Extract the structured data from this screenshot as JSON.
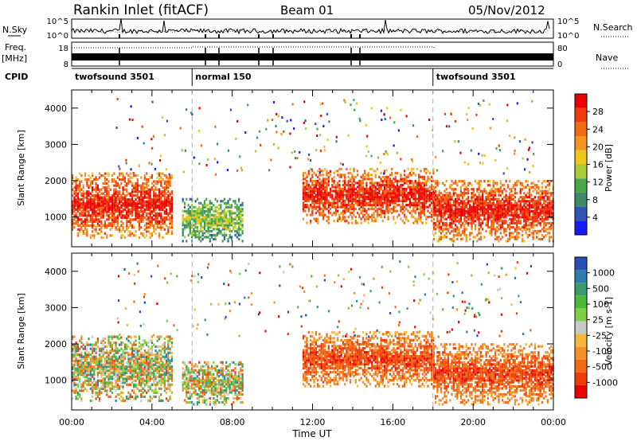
{
  "header": {
    "station": "Rankin Inlet (fitACF)",
    "beam": "Beam 01",
    "date": "05/Nov/2012"
  },
  "strip_panel": {
    "nsky_label": "N.Sky",
    "nsearch_label": "N.Search",
    "nsky_ticks": [
      "10^5",
      "10^0"
    ],
    "nsearch_ticks": [
      "10^5",
      "10^0"
    ],
    "freq_label": "Freq.",
    "freq_unit": "[MHz]",
    "freq_ticks": [
      "18",
      "8"
    ],
    "nave_label": "Nave",
    "nave_ticks": [
      "80",
      "0"
    ],
    "cpid_label": "CPID",
    "cpid_segments": [
      {
        "name": "twofsound 3501",
        "start_hour": 0,
        "end_hour": 6
      },
      {
        "name": "normal 150",
        "start_hour": 6,
        "end_hour": 18
      },
      {
        "name": "twofsound 3501",
        "start_hour": 18,
        "end_hour": 24
      }
    ]
  },
  "axes": {
    "ylabel": "Slant Range [km]",
    "xlabel": "Time UT",
    "y_ticks": [
      "1000",
      "2000",
      "3000",
      "4000"
    ],
    "x_ticks": [
      "00:00",
      "04:00",
      "08:00",
      "12:00",
      "16:00",
      "20:00",
      "00:00"
    ]
  },
  "chart_data": [
    {
      "type": "heatmap",
      "title": "",
      "xlabel": "Time UT",
      "ylabel": "Slant Range [km]",
      "xlim": [
        0,
        24
      ],
      "ylim": [
        180,
        4500
      ],
      "colorbar": {
        "label": "Power [dB]",
        "ticks": [
          "4",
          "8",
          "12",
          "16",
          "20",
          "24",
          "28"
        ],
        "colors": [
          "#1a1aff",
          "#2f55b5",
          "#3d8a6a",
          "#46a84a",
          "#a8cc38",
          "#f0c418",
          "#f59520",
          "#f46a14",
          "#f23a0a",
          "#ee0000"
        ]
      },
      "echo_regions": [
        {
          "t0": 0.0,
          "t1": 5.0,
          "r0": 400,
          "r1": 2200,
          "value": "high"
        },
        {
          "t0": 5.5,
          "t1": 8.5,
          "r0": 300,
          "r1": 1500,
          "value": "low"
        },
        {
          "t0": 11.5,
          "t1": 18.0,
          "r0": 800,
          "r1": 2300,
          "value": "high"
        },
        {
          "t0": 18.0,
          "t1": 24.0,
          "r0": 300,
          "r1": 2000,
          "value": "high"
        }
      ]
    },
    {
      "type": "heatmap",
      "title": "",
      "xlabel": "Time UT",
      "ylabel": "Slant Range [km]",
      "xlim": [
        0,
        24
      ],
      "ylim": [
        180,
        4500
      ],
      "colorbar": {
        "label": "Velocity [m s-1]",
        "ticks": [
          "1000",
          "500",
          "100",
          "25",
          "-25",
          "-100",
          "-500",
          "-1000"
        ],
        "colors": [
          "#2850b8",
          "#2f7ab0",
          "#3a9a70",
          "#4cb83a",
          "#7fd040",
          "#c8c8c8",
          "#f4b838",
          "#f49028",
          "#f46a14",
          "#f03c0a",
          "#ee0000"
        ]
      },
      "echo_regions": [
        {
          "t0": 0.0,
          "t1": 5.0,
          "r0": 400,
          "r1": 2200,
          "value": "mixed"
        },
        {
          "t0": 5.5,
          "t1": 8.5,
          "r0": 300,
          "r1": 1500,
          "value": "mixed"
        },
        {
          "t0": 11.5,
          "t1": 18.0,
          "r0": 800,
          "r1": 2300,
          "value": "negative"
        },
        {
          "t0": 18.0,
          "t1": 24.0,
          "r0": 300,
          "r1": 2000,
          "value": "negative"
        }
      ]
    }
  ]
}
